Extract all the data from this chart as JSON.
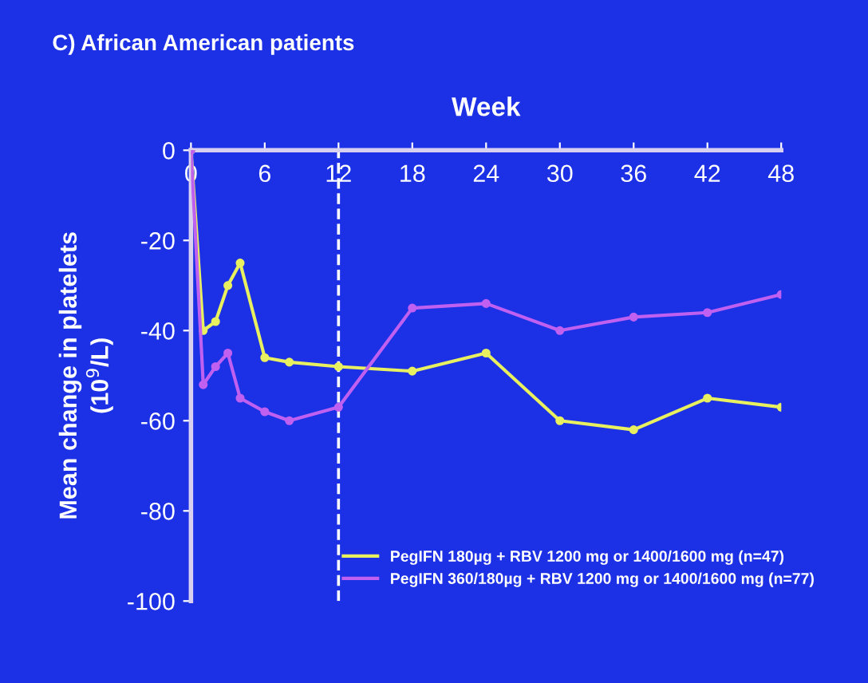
{
  "chart_data": {
    "type": "line",
    "title": "C) African American patients",
    "xlabel": "Week",
    "ylabel": "Mean change in platelets\n(10$^{9}$/L)",
    "xlim": [
      0,
      48
    ],
    "xticks": [
      0,
      6,
      12,
      18,
      24,
      30,
      36,
      42,
      48
    ],
    "ylim": [
      -100,
      0
    ],
    "yticks": [
      -100,
      -80,
      -60,
      -40,
      -20,
      0
    ],
    "grid": false,
    "legend": "bottom right",
    "marker": "circle",
    "line_style": "solid",
    "ref_lines": [
      {
        "axis": "x",
        "value": 12,
        "label": null,
        "color": "#ffffff",
        "line_style": "dashed"
      }
    ],
    "series": [
      {
        "name": "PegIFN 180µg + RBV 1200 mg or 1400/1600 mg (n=47)",
        "color": "#e8f060",
        "x": [
          0,
          1,
          2,
          3,
          4,
          6,
          8,
          12,
          18,
          24,
          30,
          36,
          42,
          48
        ],
        "values": [
          0,
          -40,
          -38,
          -30,
          -25,
          -46,
          -47,
          -48,
          -49,
          -45,
          -60,
          -62,
          -55,
          -57
        ]
      },
      {
        "name": "PegIFN 360/180µg + RBV 1200 mg or 1400/1600 mg (n=77)",
        "color": "#c060f0",
        "x": [
          0,
          1,
          2,
          3,
          4,
          6,
          8,
          12,
          18,
          24,
          30,
          36,
          42,
          48
        ],
        "values": [
          0,
          -52,
          -48,
          -45,
          -55,
          -58,
          -60,
          -57,
          -35,
          -34,
          -40,
          -37,
          -36,
          -32
        ]
      }
    ]
  }
}
